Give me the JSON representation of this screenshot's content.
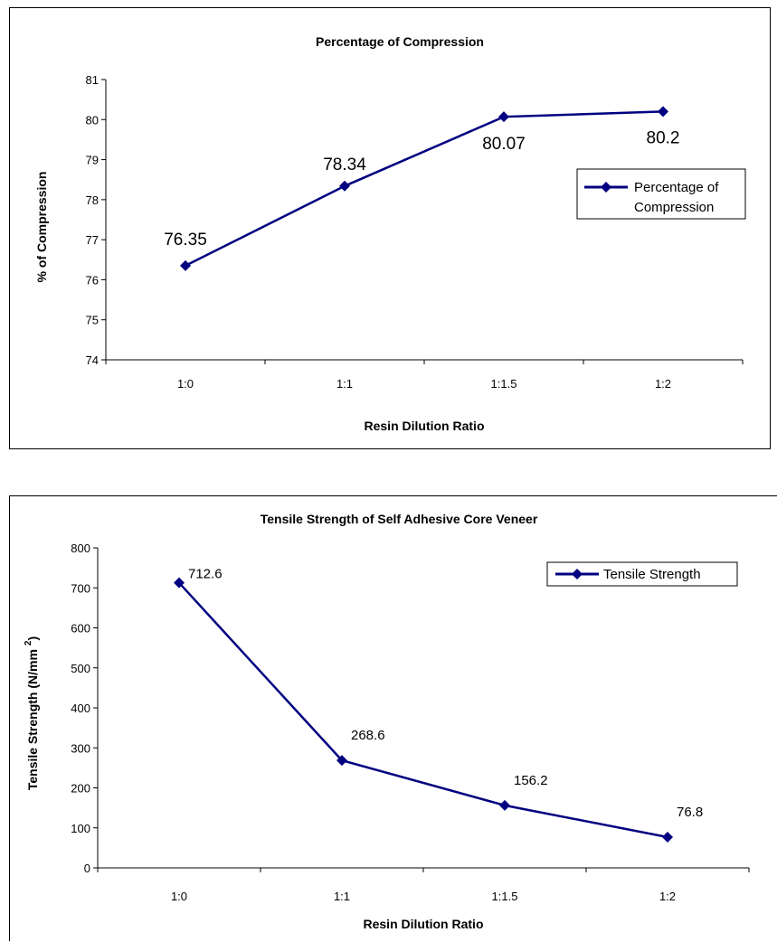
{
  "chart_data": [
    {
      "type": "line",
      "title": "Percentage of Compression",
      "xlabel": "Resin Dilution Ratio",
      "ylabel": "% of Compression",
      "categories": [
        "1:0",
        "1:1",
        "1:1.5",
        "1:2"
      ],
      "ylim": [
        74,
        81
      ],
      "yticks": [
        "74",
        "75",
        "76",
        "77",
        "78",
        "79",
        "80",
        "81"
      ],
      "series": [
        {
          "name": "Percentage of Compression",
          "values": [
            76.35,
            78.34,
            80.07,
            80.2
          ],
          "labels": [
            "76.35",
            "78.34",
            "80.07",
            "80.2"
          ],
          "color": "#000080"
        }
      ],
      "legend": {
        "position": "right",
        "lines": [
          "Percentage of",
          "Compression"
        ]
      },
      "grid": false
    },
    {
      "type": "line",
      "title": "Tensile Strength of Self Adhesive Core Veneer",
      "xlabel": "Resin Dilution Ratio",
      "ylabel": "Tensile Strength (N/mm 2)",
      "ylabel_main": "Tensile Strength (N/mm",
      "ylabel_sup": "2",
      "ylabel_close": ")",
      "categories": [
        "1:0",
        "1:1",
        "1:1.5",
        "1:2"
      ],
      "ylim": [
        0,
        800
      ],
      "yticks": [
        "0",
        "100",
        "200",
        "300",
        "400",
        "500",
        "600",
        "700",
        "800"
      ],
      "series": [
        {
          "name": "Tensile Strength",
          "values": [
            712.6,
            268.6,
            156.2,
            76.8
          ],
          "labels": [
            "712.6",
            "268.6",
            "156.2",
            "76.8"
          ],
          "color": "#000080"
        }
      ],
      "legend": {
        "position": "top-right",
        "lines": [
          "Tensile Strength"
        ]
      },
      "grid": false
    }
  ]
}
